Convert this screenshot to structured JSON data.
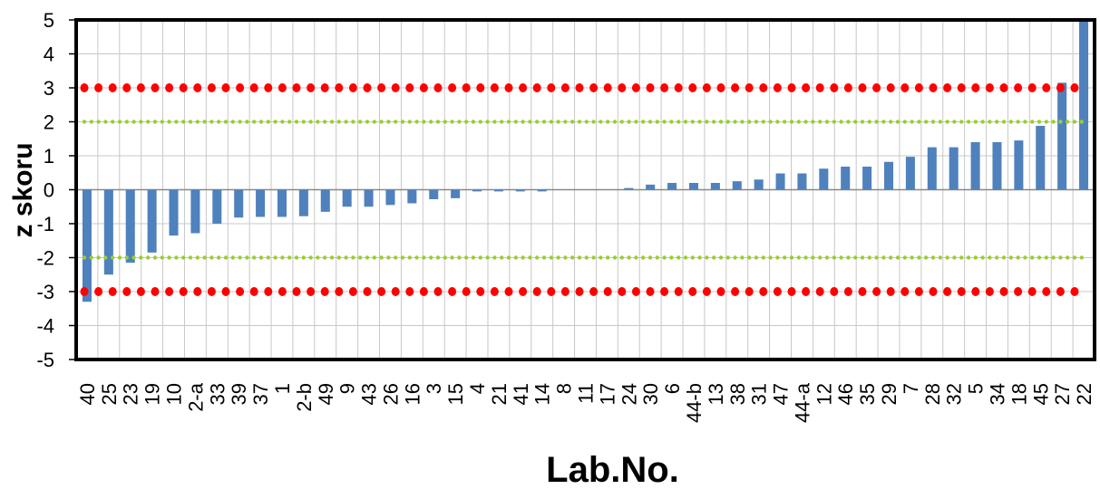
{
  "chart_data": {
    "type": "bar",
    "title": "",
    "xlabel": "Lab.No.",
    "ylabel": "z skoru",
    "ylim": [
      -5,
      5
    ],
    "yticks": [
      5,
      4,
      3,
      2,
      1,
      0,
      -1,
      -2,
      -3,
      -4,
      -5
    ],
    "grid": true,
    "legend": "none",
    "categories": [
      "40",
      "25",
      "23",
      "19",
      "10",
      "2-a",
      "33",
      "39",
      "37",
      "1",
      "2-b",
      "49",
      "9",
      "43",
      "26",
      "16",
      "3",
      "15",
      "4",
      "21",
      "41",
      "14",
      "8",
      "11",
      "17",
      "24",
      "30",
      "6",
      "44-b",
      "13",
      "38",
      "31",
      "47",
      "44-a",
      "12",
      "46",
      "35",
      "29",
      "7",
      "28",
      "32",
      "5",
      "34",
      "18",
      "45",
      "27",
      "22"
    ],
    "values": [
      -3.3,
      -2.5,
      -2.15,
      -1.85,
      -1.35,
      -1.28,
      -1.0,
      -0.82,
      -0.8,
      -0.8,
      -0.78,
      -0.65,
      -0.5,
      -0.5,
      -0.45,
      -0.4,
      -0.28,
      -0.25,
      -0.05,
      -0.05,
      -0.05,
      -0.05,
      0,
      0,
      0,
      0.05,
      0.15,
      0.2,
      0.2,
      0.2,
      0.25,
      0.3,
      0.48,
      0.48,
      0.62,
      0.68,
      0.68,
      0.82,
      0.97,
      1.25,
      1.25,
      1.4,
      1.4,
      1.45,
      1.88,
      3.15,
      5.0
    ],
    "reference_lines": [
      {
        "value": 3,
        "color": "#ff0000",
        "style": "dotted"
      },
      {
        "value": -3,
        "color": "#ff0000",
        "style": "dotted"
      },
      {
        "value": 2,
        "color": "#9acd32",
        "style": "dotted"
      },
      {
        "value": -2,
        "color": "#9acd32",
        "style": "dotted"
      }
    ],
    "colors": {
      "bar": "#4f81bd",
      "grid": "#c8c8c8",
      "frame": "#000000"
    }
  }
}
